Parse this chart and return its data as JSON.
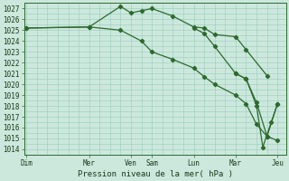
{
  "xlabel": "Pression niveau de la mer( hPa )",
  "background_color": "#cce8dd",
  "grid_color": "#99ccbb",
  "line_color": "#2d6a2d",
  "ylim": [
    1013.5,
    1027.5
  ],
  "yticks": [
    1014,
    1015,
    1016,
    1017,
    1018,
    1019,
    1020,
    1021,
    1022,
    1023,
    1024,
    1025,
    1026,
    1027
  ],
  "day_positions": [
    0,
    3,
    5,
    6,
    8,
    10,
    12
  ],
  "day_labels": [
    "Dim",
    "Mer",
    "Ven",
    "Sam",
    "Lun",
    "Mar",
    "Jeu"
  ],
  "xlim": [
    -0.1,
    12.4
  ],
  "series1_x": [
    0,
    3,
    4.5,
    5.0,
    5.5,
    6.0,
    7.0,
    8.0,
    8.5,
    9.0,
    10.0,
    10.5,
    11.5
  ],
  "series1_y": [
    1025.2,
    1025.3,
    1027.2,
    1026.6,
    1026.8,
    1027.0,
    1026.3,
    1025.3,
    1025.2,
    1024.6,
    1024.4,
    1023.2,
    1020.8
  ],
  "series2_x": [
    0,
    3,
    4.5,
    5.5,
    6.0,
    7.0,
    8.0,
    8.5,
    9.0,
    10.0,
    10.5,
    11.0,
    11.5,
    12.0
  ],
  "series2_y": [
    1025.2,
    1025.3,
    1025.0,
    1024.0,
    1023.0,
    1022.3,
    1021.5,
    1020.7,
    1020.0,
    1019.0,
    1018.2,
    1016.3,
    1015.2,
    1018.2
  ],
  "series3_x": [
    8.0,
    8.5,
    9.0,
    10.0,
    10.5,
    11.0,
    11.5,
    12.0
  ],
  "series3_y": [
    1025.2,
    1024.7,
    1023.5,
    1021.0,
    1020.5,
    1018.3,
    1015.2,
    1014.8
  ],
  "series4_x": [
    10.0,
    10.5,
    11.0,
    11.3,
    11.7,
    12.0
  ],
  "series4_y": [
    1021.0,
    1020.5,
    1018.0,
    1014.2,
    1016.5,
    1018.2
  ]
}
